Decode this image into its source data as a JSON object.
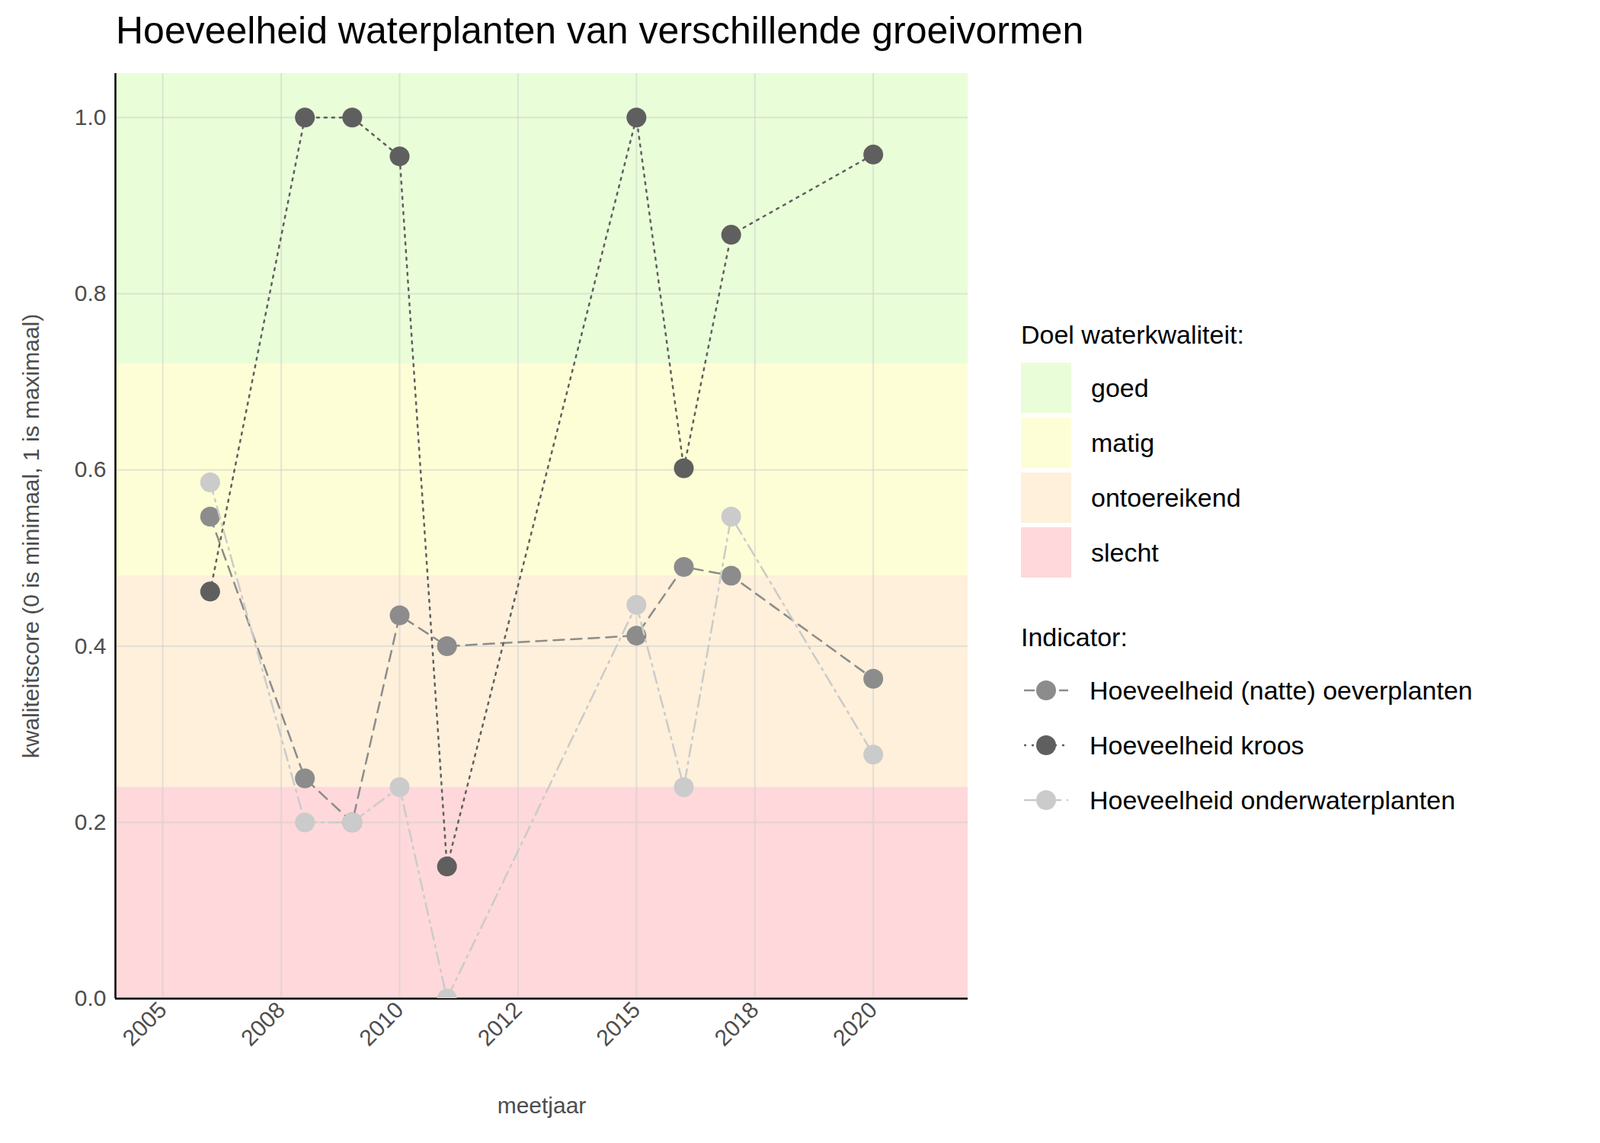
{
  "chart_data": {
    "type": "line",
    "title": "Hoeveelheid waterplanten van verschillende groeivormen",
    "x_label": "meetjaar",
    "y_label": "kwaliteitscore (0 is minimaal, 1 is maximaal)",
    "x": [
      2006,
      2008,
      2009,
      2010,
      2011,
      2015,
      2016,
      2017,
      2020
    ],
    "series_title": "Indicator:",
    "series": [
      {
        "name": "Hoeveelheid (natte) oeverplanten",
        "color": "#8c8c8c",
        "line_style": "dashed",
        "marker": "circle",
        "values": [
          0.547,
          0.25,
          0.2,
          0.435,
          0.4,
          0.412,
          0.49,
          0.48,
          0.363
        ]
      },
      {
        "name": "Hoeveelheid kroos",
        "color": "#5f5f5f",
        "line_style": "dotted",
        "marker": "circle",
        "values": [
          0.462,
          1.0,
          1.0,
          0.956,
          0.15,
          1.0,
          0.602,
          0.867,
          0.958
        ]
      },
      {
        "name": "Hoeveelheid onderwaterplanten",
        "color": "#cbcbcb",
        "line_style": "dashdot",
        "marker": "circle",
        "values": [
          0.586,
          0.2,
          0.2,
          0.24,
          0.0,
          0.447,
          0.24,
          0.547,
          0.277
        ]
      }
    ],
    "bands": {
      "title": "Doel waterkwaliteit:",
      "items": [
        {
          "name": "goed",
          "from": 0.72,
          "to": 1.05,
          "color": "#e9fed8"
        },
        {
          "name": "matig",
          "from": 0.48,
          "to": 0.72,
          "color": "#fefed6"
        },
        {
          "name": "ontoereikend",
          "from": 0.24,
          "to": 0.48,
          "color": "#fef0da"
        },
        {
          "name": "slecht",
          "from": 0.0,
          "to": 0.24,
          "color": "#fed8da"
        }
      ]
    },
    "xlim": [
      2004,
      2022
    ],
    "xticks": [
      2005,
      {
        "value": 2007.5,
        "label": "2008"
      },
      2010,
      {
        "value": 2012.5,
        "label": "2012"
      },
      2015,
      {
        "value": 2017.5,
        "label": "2018"
      },
      2020
    ],
    "ylim": [
      0,
      1.05
    ],
    "yticks": [
      {
        "value": 0,
        "label": "0.0"
      },
      0.2,
      0.4,
      0.6,
      0.8,
      {
        "value": 1,
        "label": "1.0"
      }
    ],
    "grid": true,
    "legend": "right"
  }
}
